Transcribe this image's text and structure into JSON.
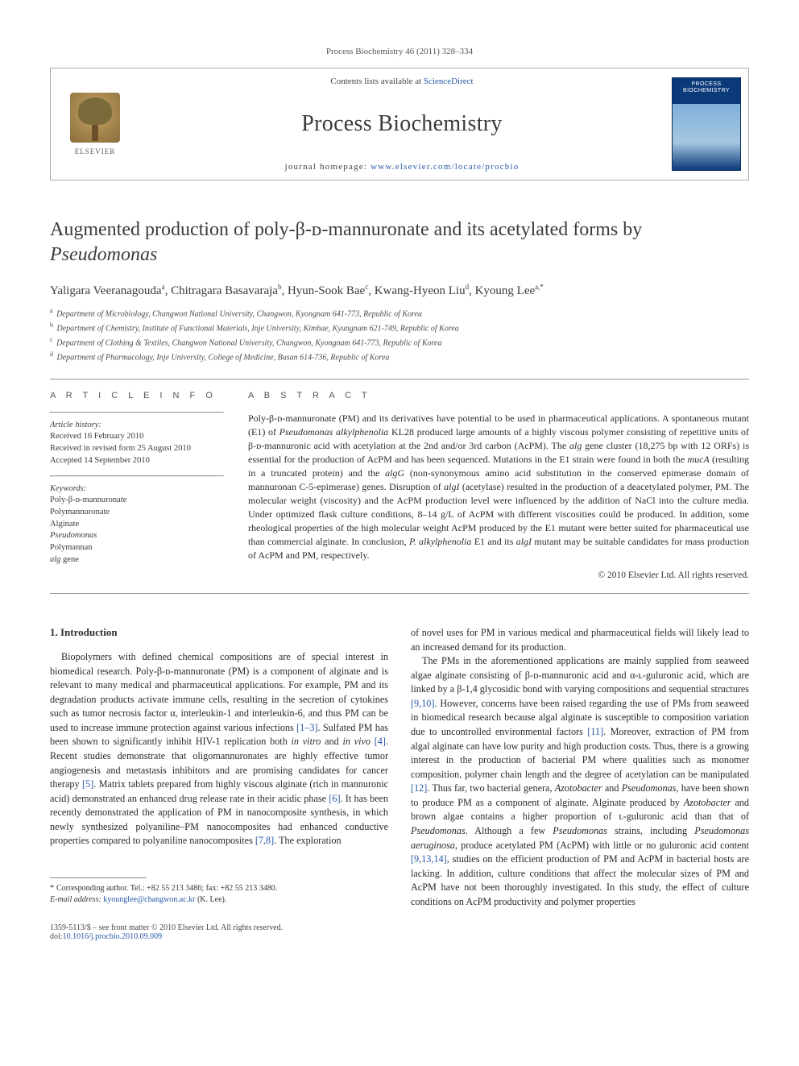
{
  "journal_ref": "Process Biochemistry 46 (2011) 328–334",
  "header": {
    "contents_prefix": "Contents lists available at ",
    "contents_link": "ScienceDirect",
    "journal_name": "Process Biochemistry",
    "homepage_prefix": "journal homepage: ",
    "homepage_url": "www.elsevier.com/locate/procbio",
    "publisher_logo_word": "ELSEVIER",
    "cover_text": "PROCESS BIOCHEMISTRY"
  },
  "title": "Augmented production of poly-β-ᴅ-mannuronate and its acetylated forms by Pseudomonas",
  "authors_html": "Yaligara Veeranagouda<sup>a</sup>, Chitragara Basavaraja<sup>b</sup>, Hyun-Sook Bae<sup>c</sup>, Kwang-Hyeon Liu<sup>d</sup>, Kyoung Lee<sup>a,*</sup>",
  "affiliations": [
    {
      "sup": "a",
      "text": "Department of Microbiology, Changwon National University, Changwon, Kyongnam 641-773, Republic of Korea"
    },
    {
      "sup": "b",
      "text": "Department of Chemistry, Institute of Functional Materials, Inje University, Kimhae, Kyungnam 621-749, Republic of Korea"
    },
    {
      "sup": "c",
      "text": "Department of Clothing & Textiles, Changwon National University, Changwon, Kyongnam 641-773, Republic of Korea"
    },
    {
      "sup": "d",
      "text": "Department of Pharmacology, Inje University, College of Medicine, Busan 614-736, Republic of Korea"
    }
  ],
  "labels": {
    "article_info": "A R T I C L E   I N F O",
    "abstract": "A B S T R A C T",
    "article_history": "Article history:",
    "keywords": "Keywords:"
  },
  "history": {
    "received": "Received 16 February 2010",
    "revised": "Received in revised form 25 August 2010",
    "accepted": "Accepted 14 September 2010"
  },
  "keywords_list": [
    "Poly-β-ᴅ-mannuronate",
    "Polymannuronate",
    "Alginate",
    "Pseudomonas",
    "Polymannan",
    "alg gene"
  ],
  "abstract": "Poly-β-ᴅ-mannuronate (PM) and its derivatives have potential to be used in pharmaceutical applications. A spontaneous mutant (E1) of Pseudomonas alkylphenolia KL28 produced large amounts of a highly viscous polymer consisting of repetitive units of β-ᴅ-mannuronic acid with acetylation at the 2nd and/or 3rd carbon (AcPM). The alg gene cluster (18,275 bp with 12 ORFs) is essential for the production of AcPM and has been sequenced. Mutations in the E1 strain were found in both the mucA (resulting in a truncated protein) and the algG (non-synonymous amino acid substitution in the conserved epimerase domain of mannuronan C-5-epimerase) genes. Disruption of algI (acetylase) resulted in the production of a deacetylated polymer, PM. The molecular weight (viscosity) and the AcPM production level were influenced by the addition of NaCl into the culture media. Under optimized flask culture conditions, 8–14 g/L of AcPM with different viscosities could be produced. In addition, some rheological properties of the high molecular weight AcPM produced by the E1 mutant were better suited for pharmaceutical use than commercial alginate. In conclusion, P. alkylphenolia E1 and its algI mutant may be suitable candidates for mass production of AcPM and PM, respectively.",
  "copyright_line": "© 2010 Elsevier Ltd. All rights reserved.",
  "section_heading": "1. Introduction",
  "col1_para": "Biopolymers with defined chemical compositions are of special interest in biomedical research. Poly-β-ᴅ-mannuronate (PM) is a component of alginate and is relevant to many medical and pharmaceutical applications. For example, PM and its degradation products activate immune cells, resulting in the secretion of cytokines such as tumor necrosis factor α, interleukin-1 and interleukin-6, and thus PM can be used to increase immune protection against various infections [1–3]. Sulfated PM has been shown to significantly inhibit HIV-1 replication both in vitro and in vivo [4]. Recent studies demonstrate that oligomannuronates are highly effective tumor angiogenesis and metastasis inhibitors and are promising candidates for cancer therapy [5]. Matrix tablets prepared from highly viscous alginate (rich in mannuronic acid) demonstrated an enhanced drug release rate in their acidic phase [6]. It has been recently demonstrated the application of PM in nanocomposite synthesis, in which newly synthesized polyaniline–PM nanocomposites had enhanced conductive properties compared to polyaniline nanocomposites [7,8]. The exploration",
  "col2_para1": "of novel uses for PM in various medical and pharmaceutical fields will likely lead to an increased demand for its production.",
  "col2_para2": "The PMs in the aforementioned applications are mainly supplied from seaweed algae alginate consisting of β-ᴅ-mannuronic acid and α-ʟ-guluronic acid, which are linked by a β-1,4 glycosidic bond with varying compositions and sequential structures [9,10]. However, concerns have been raised regarding the use of PMs from seaweed in biomedical research because algal alginate is susceptible to composition variation due to uncontrolled environmental factors [11]. Moreover, extraction of PM from algal alginate can have low purity and high production costs. Thus, there is a growing interest in the production of bacterial PM where qualities such as monomer composition, polymer chain length and the degree of acetylation can be manipulated [12]. Thus far, two bacterial genera, Azotobacter and Pseudomonas, have been shown to produce PM as a component of alginate. Alginate produced by Azotobacter and brown algae contains a higher proportion of ʟ-guluronic acid than that of Pseudomonas. Although a few Pseudomonas strains, including Pseudomonas aeruginosa, produce acetylated PM (AcPM) with little or no guluronic acid content [9,13,14], studies on the efficient production of PM and AcPM in bacterial hosts are lacking. In addition, culture conditions that affect the molecular sizes of PM and AcPM have not been thoroughly investigated. In this study, the effect of culture conditions on AcPM productivity and polymer properties",
  "footnote": {
    "corr_line": "Corresponding author. Tel.: +82 55 213 3486; fax: +82 55 213 3480.",
    "email_label": "E-mail address: ",
    "email": "kyounglee@changwon.ac.kr",
    "email_who": " (K. Lee)."
  },
  "bottom": {
    "left": "1359-5113/$ – see front matter © 2010 Elsevier Ltd. All rights reserved.",
    "doi_label": "doi:",
    "doi": "10.1016/j.procbio.2010.09.009"
  },
  "colors": {
    "link": "#2659a6",
    "text": "#2a2a2a",
    "rule": "#999999",
    "cover_blue": "#0b3a7a"
  },
  "typography": {
    "title_fontsize": 24,
    "journal_name_fontsize": 28,
    "body_fontsize": 12.2,
    "abstract_fontsize": 12,
    "affil_fontsize": 10,
    "keywords_fontsize": 10.5
  }
}
